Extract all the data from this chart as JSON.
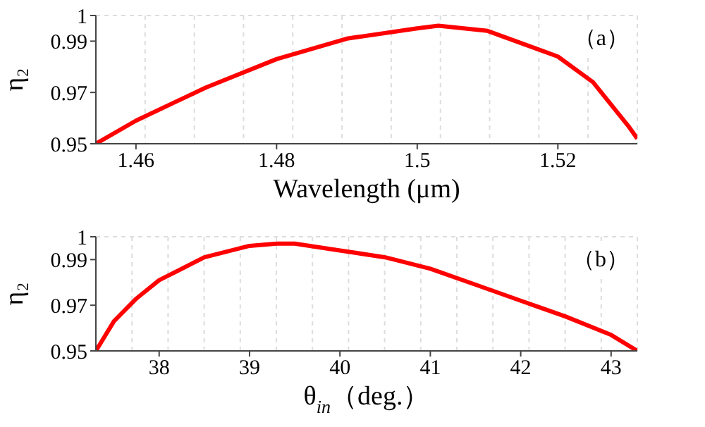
{
  "chart_data": [
    {
      "type": "line",
      "xlabel": "Wavelength (μm)",
      "ylabel": "η₂",
      "annotations": [
        "（a）"
      ],
      "x": [
        1.4543,
        1.46,
        1.47,
        1.48,
        1.49,
        1.5,
        1.503,
        1.51,
        1.52,
        1.525,
        1.53,
        1.5313
      ],
      "series": [
        {
          "color": "#ff0000",
          "values": [
            0.95,
            0.959,
            0.972,
            0.983,
            0.991,
            0.995,
            0.996,
            0.994,
            0.984,
            0.974,
            0.957,
            0.952
          ]
        }
      ],
      "xlim": [
        1.4543,
        1.5313
      ],
      "xticks": [
        1.46,
        1.48,
        1.5,
        1.52
      ],
      "ylim": [
        0.95,
        1
      ],
      "yticks": [
        0.95,
        0.97,
        0.99,
        1
      ],
      "grid": true,
      "marker": "none",
      "line_style": "solid"
    },
    {
      "type": "line",
      "xlabel": "θ$_{in}$（deg.）",
      "ylabel": "η₂",
      "annotations": [
        "（b）"
      ],
      "x": [
        37.3,
        37.5,
        37.75,
        38,
        38.5,
        39,
        39.3,
        39.5,
        40,
        40.5,
        41,
        41.5,
        42,
        42.5,
        43,
        43.29
      ],
      "series": [
        {
          "color": "#ff0000",
          "values": [
            0.95,
            0.963,
            0.973,
            0.981,
            0.991,
            0.996,
            0.997,
            0.997,
            0.994,
            0.991,
            0.986,
            0.979,
            0.972,
            0.965,
            0.957,
            0.95
          ]
        }
      ],
      "xlim": [
        37.3,
        43.29
      ],
      "xticks": [
        38,
        39,
        40,
        41,
        42,
        43
      ],
      "ylim": [
        0.95,
        1
      ],
      "yticks": [
        0.95,
        0.97,
        0.99,
        1
      ],
      "grid": true,
      "marker": "none",
      "line_style": "solid"
    }
  ]
}
